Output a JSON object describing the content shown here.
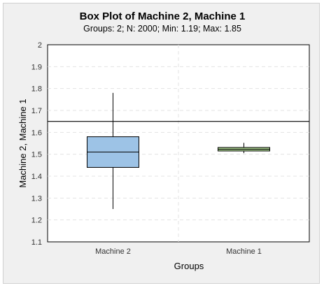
{
  "chart_data": {
    "type": "box",
    "title": "Box Plot of Machine 2, Machine 1",
    "subtitle": "Groups: 2; N: 2000; Min: 1.19; Max: 1.85",
    "xlabel": "Groups",
    "ylabel": "Machine 2, Machine 1",
    "ylim": [
      1.1,
      2.0
    ],
    "yticks": [
      1.1,
      1.2,
      1.3,
      1.4,
      1.5,
      1.6,
      1.7,
      1.8,
      1.9,
      2.0
    ],
    "ytick_labels": [
      "1.1",
      "1.2",
      "1.3",
      "1.4",
      "1.5",
      "1.6",
      "1.7",
      "1.8",
      "1.9",
      "2"
    ],
    "grid": true,
    "reference_line": 1.65,
    "categories": [
      "Machine 2",
      "Machine 1"
    ],
    "boxes": [
      {
        "name": "Machine 2",
        "whisker_low": 1.25,
        "q1": 1.44,
        "median": 1.51,
        "q3": 1.58,
        "whisker_high": 1.78,
        "color": "#9dc3e6"
      },
      {
        "name": "Machine 1",
        "whisker_low": 1.505,
        "q1": 1.515,
        "median": 1.523,
        "q3": 1.531,
        "whisker_high": 1.552,
        "color": "#a9d18e"
      }
    ]
  }
}
